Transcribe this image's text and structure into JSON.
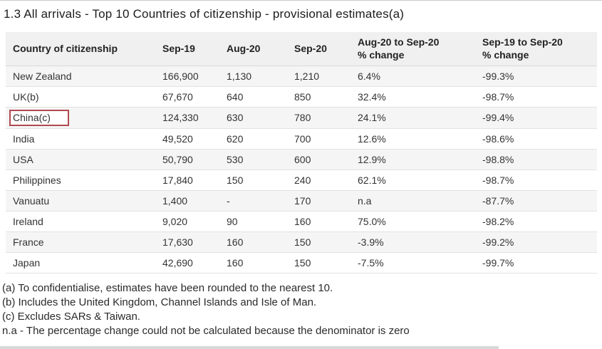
{
  "title": "1.3 All arrivals - Top 10 Countries of citizenship - provisional estimates(a)",
  "table": {
    "headers": [
      {
        "line1": "Country of citizenship",
        "line2": ""
      },
      {
        "line1": "Sep-19",
        "line2": ""
      },
      {
        "line1": "Aug-20",
        "line2": ""
      },
      {
        "line1": "Sep-20",
        "line2": ""
      },
      {
        "line1": "Aug-20 to Sep-20",
        "line2": "% change"
      },
      {
        "line1": "Sep-19 to Sep-20",
        "line2": "% change"
      }
    ],
    "rows": [
      {
        "country": "New Zealand",
        "sep19": "166,900",
        "aug20": "1,130",
        "sep20": "1,210",
        "aug_to_sep_change": "6.4%",
        "sep_to_sep_change": "-99.3%",
        "highlighted": false
      },
      {
        "country": "UK(b)",
        "sep19": "67,670",
        "aug20": "640",
        "sep20": "850",
        "aug_to_sep_change": "32.4%",
        "sep_to_sep_change": "-98.7%",
        "highlighted": false
      },
      {
        "country": "China(c)",
        "sep19": "124,330",
        "aug20": "630",
        "sep20": "780",
        "aug_to_sep_change": "24.1%",
        "sep_to_sep_change": "-99.4%",
        "highlighted": true
      },
      {
        "country": "India",
        "sep19": "49,520",
        "aug20": "620",
        "sep20": "700",
        "aug_to_sep_change": "12.6%",
        "sep_to_sep_change": "-98.6%",
        "highlighted": false
      },
      {
        "country": "USA",
        "sep19": "50,790",
        "aug20": "530",
        "sep20": "600",
        "aug_to_sep_change": "12.9%",
        "sep_to_sep_change": "-98.8%",
        "highlighted": false
      },
      {
        "country": "Philippines",
        "sep19": "17,840",
        "aug20": "150",
        "sep20": "240",
        "aug_to_sep_change": "62.1%",
        "sep_to_sep_change": "-98.7%",
        "highlighted": false
      },
      {
        "country": "Vanuatu",
        "sep19": "1,400",
        "aug20": "-",
        "sep20": "170",
        "aug_to_sep_change": "n.a",
        "sep_to_sep_change": "-87.7%",
        "highlighted": false
      },
      {
        "country": "Ireland",
        "sep19": "9,020",
        "aug20": "90",
        "sep20": "160",
        "aug_to_sep_change": "75.0%",
        "sep_to_sep_change": "-98.2%",
        "highlighted": false
      },
      {
        "country": "France",
        "sep19": "17,630",
        "aug20": "160",
        "sep20": "150",
        "aug_to_sep_change": "-3.9%",
        "sep_to_sep_change": "-99.2%",
        "highlighted": false
      },
      {
        "country": "Japan",
        "sep19": "42,690",
        "aug20": "160",
        "sep20": "150",
        "aug_to_sep_change": "-7.5%",
        "sep_to_sep_change": "-99.7%",
        "highlighted": false
      }
    ]
  },
  "footnotes": [
    "(a) To confidentialise, estimates have been rounded to the nearest 10.",
    "(b) Includes the United Kingdom, Channel Islands and Isle of Man.",
    "(c) Excludes SARs & Taiwan.",
    "n.a - The percentage change could not be calculated because the denominator is zero"
  ],
  "colors": {
    "highlight_border": "#b04a50",
    "header_bg": "#f0f0f0",
    "stripe_bg": "#f5f5f5"
  }
}
